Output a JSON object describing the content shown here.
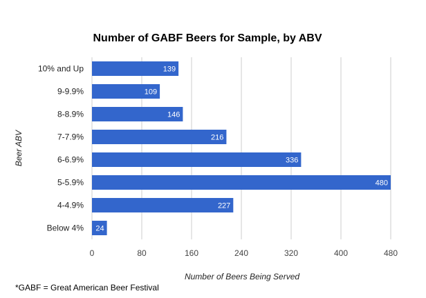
{
  "chart_data": {
    "type": "bar",
    "orientation": "horizontal",
    "title": "Number of GABF Beers for Sample, by ABV",
    "xlabel": "Number of Beers Being Served",
    "ylabel": "Beer ABV",
    "categories": [
      "10% and Up",
      "9-9.9%",
      "8-8.9%",
      "7-7.9%",
      "6-6.9%",
      "5-5.9%",
      "4-4.9%",
      "Below 4%"
    ],
    "values": [
      139,
      109,
      146,
      216,
      336,
      480,
      227,
      24
    ],
    "xlim": [
      0,
      480
    ],
    "xticks": [
      0,
      80,
      160,
      240,
      320,
      400,
      480
    ],
    "grid": true,
    "bar_color": "#3366cc",
    "data_labels": true
  },
  "footnote": "*GABF = Great American Beer Festival"
}
